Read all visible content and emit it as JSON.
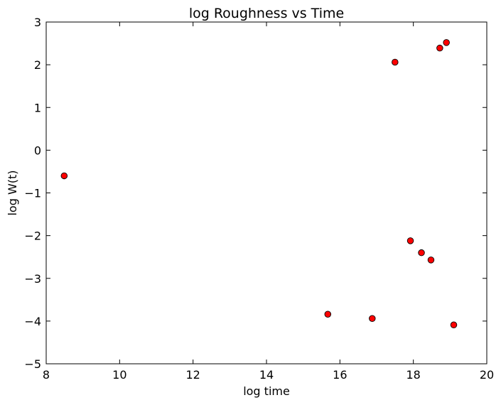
{
  "chart_data": {
    "type": "scatter",
    "title": "log Roughness vs Time",
    "xlabel": "log time",
    "ylabel": "log W(t)",
    "xlim": [
      8,
      20
    ],
    "ylim": [
      -5,
      3
    ],
    "x_ticks": [
      8,
      10,
      12,
      14,
      16,
      18,
      20
    ],
    "y_ticks": [
      -5,
      -4,
      -3,
      -2,
      -1,
      0,
      1,
      2,
      3
    ],
    "x_tick_labels": [
      "8",
      "10",
      "12",
      "14",
      "16",
      "18",
      "20"
    ],
    "y_tick_labels": [
      "−5",
      "−4",
      "−3",
      "−2",
      "−1",
      "0",
      "1",
      "2",
      "3"
    ],
    "grid": false,
    "marker_color": "#ff0000",
    "marker_edge_color": "#000000",
    "points": [
      {
        "x": 8.49,
        "y": -0.6
      },
      {
        "x": 15.67,
        "y": -3.84
      },
      {
        "x": 16.88,
        "y": -3.94
      },
      {
        "x": 17.5,
        "y": 2.06
      },
      {
        "x": 17.92,
        "y": -2.12
      },
      {
        "x": 18.22,
        "y": -2.4
      },
      {
        "x": 18.48,
        "y": -2.57
      },
      {
        "x": 18.72,
        "y": 2.39
      },
      {
        "x": 18.9,
        "y": 2.52
      },
      {
        "x": 19.1,
        "y": -4.09
      }
    ]
  }
}
